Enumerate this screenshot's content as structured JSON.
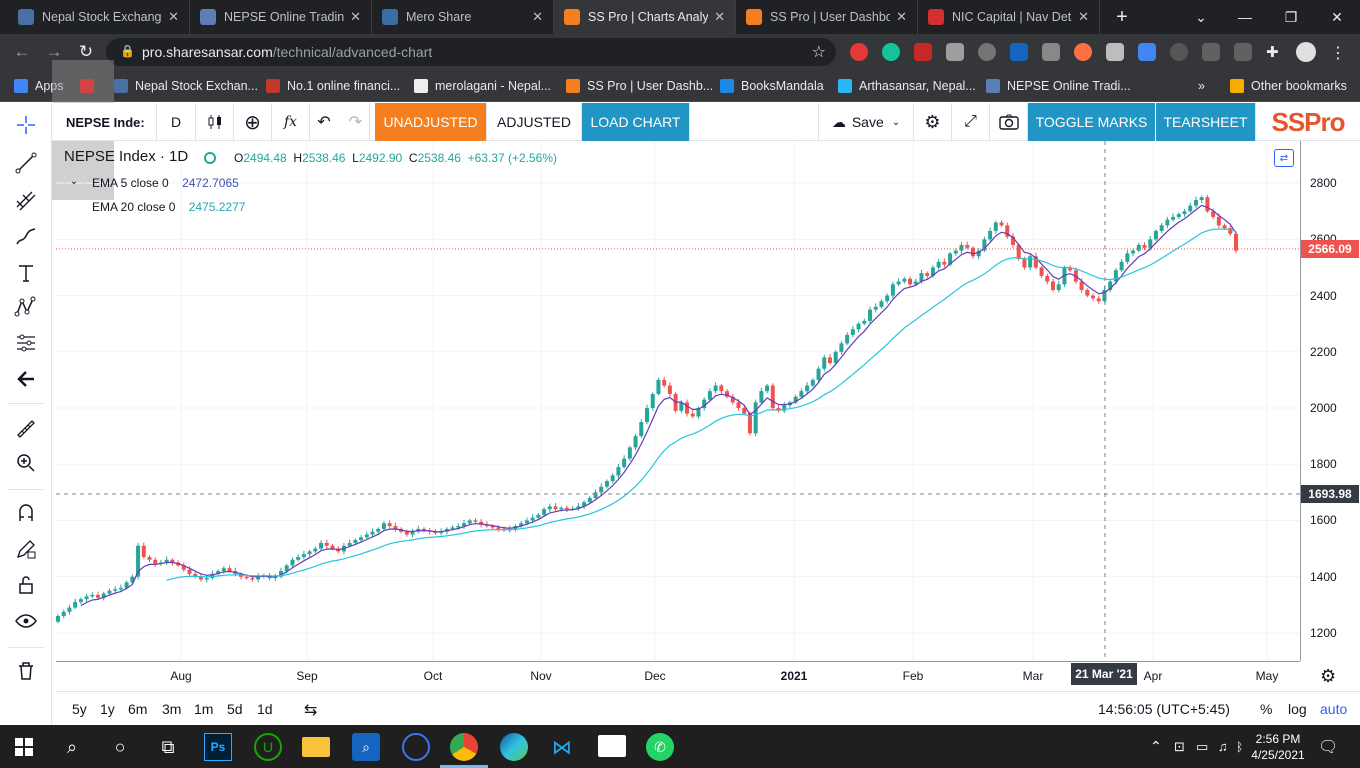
{
  "browser": {
    "tabs": [
      {
        "label": "Nepal Stock Exchange",
        "favicon": "nepse-favicon",
        "color": "#4a6fa5",
        "active": false
      },
      {
        "label": "NEPSE Online Trading",
        "favicon": "nepse-favicon",
        "color": "#5b7fb5",
        "active": false
      },
      {
        "label": "Mero Share",
        "favicon": "mero-share-favicon",
        "color": "#3a6ea5",
        "active": false
      },
      {
        "label": "SS Pro | Charts Analysis",
        "favicon": "sspro-favicon",
        "color": "#f57e1f",
        "active": true
      },
      {
        "label": "SS Pro | User Dashboard",
        "favicon": "sspro-favicon",
        "color": "#f57e1f",
        "active": false
      },
      {
        "label": "NIC Capital | Nav Details",
        "favicon": "nic-favicon",
        "color": "#d32f2f",
        "active": false
      }
    ],
    "url_host": "pro.sharesansar.com",
    "url_path": "/technical/advanced-chart",
    "bookmarks": [
      {
        "label": "Apps",
        "icon": "apps-icon",
        "color": "#4285f4"
      },
      {
        "label": "",
        "icon": "youtube-icon",
        "color": "#ff0000"
      },
      {
        "label": "Nepal Stock Exchan...",
        "icon": "nepse-favicon",
        "color": "#4a6fa5"
      },
      {
        "label": "No.1 online financi...",
        "icon": "bull-icon",
        "color": "#c0392b"
      },
      {
        "label": "merolagani - Nepal...",
        "icon": "merolagani-icon",
        "color": "#eeeeee"
      },
      {
        "label": "SS Pro | User Dashb...",
        "icon": "sspro-favicon",
        "color": "#f57e1f"
      },
      {
        "label": "BooksMandala",
        "icon": "booksmandala-icon",
        "color": "#1e88e5"
      },
      {
        "label": "Arthasansar, Nepal...",
        "icon": "arthasansar-icon",
        "color": "#29b6f6"
      },
      {
        "label": "NEPSE Online Tradi...",
        "icon": "nepse-favicon",
        "color": "#5b7fb5"
      }
    ],
    "bookmarks_more": "»",
    "other_bookmarks": "Other bookmarks"
  },
  "toolbar": {
    "symbol": "NEPSE Inde:",
    "interval": "D",
    "unadjusted": "UNADJUSTED",
    "adjusted": "ADJUSTED",
    "load_chart": "LOAD CHART",
    "save": "Save",
    "toggle_marks": "TOGGLE MARKS",
    "tearsheet": "TEARSHEET",
    "logo": "SSPro"
  },
  "legend": {
    "symbol": "NEPSE Index · 1D",
    "o_label": "O",
    "o": "2494.48",
    "h_label": "H",
    "h": "2538.46",
    "l_label": "L",
    "l": "2492.90",
    "c_label": "C",
    "c": "2538.46",
    "change": "+63.37 (+2.56%)",
    "ema5_label": "EMA 5 close 0",
    "ema5_value": "2472.7065",
    "ema20_label": "EMA 20 close 0",
    "ema20_value": "2475.2277"
  },
  "axes": {
    "last_price_label": "2566.09",
    "crosshair_price_label": "1693.98",
    "crosshair_date_label": "21 Mar '21"
  },
  "bottom": {
    "ranges": [
      "5y",
      "1y",
      "6m",
      "3m",
      "1m",
      "5d",
      "1d"
    ],
    "clock": "14:56:05 (UTC+5:45)",
    "percent": "%",
    "log": "log",
    "auto": "auto"
  },
  "taskbar": {
    "time": "2:56 PM",
    "date": "4/25/2021"
  },
  "chart_data": {
    "type": "candlestick",
    "symbol": "NEPSE Index",
    "interval": "1D",
    "y_ticks": [
      1200,
      1400,
      1600,
      1800,
      2000,
      2200,
      2400,
      2600,
      2800
    ],
    "x_ticks": [
      "Aug",
      "Sep",
      "Oct",
      "Nov",
      "Dec",
      "2021",
      "Feb",
      "Mar",
      "Apr",
      "May"
    ],
    "ylim": [
      1100,
      2950
    ],
    "last_price": 2566.09,
    "crosshair_price": 1693.98,
    "crosshair_date": "21 Mar '21",
    "colors": {
      "up": "#26a69a",
      "down": "#ef5350",
      "ema5": "#673ab7",
      "ema20": "#26c6da"
    },
    "closes": [
      1260,
      1275,
      1290,
      1310,
      1320,
      1330,
      1335,
      1325,
      1340,
      1350,
      1355,
      1360,
      1380,
      1400,
      1510,
      1470,
      1460,
      1445,
      1450,
      1460,
      1450,
      1440,
      1425,
      1410,
      1400,
      1390,
      1395,
      1410,
      1420,
      1430,
      1420,
      1410,
      1400,
      1395,
      1390,
      1400,
      1405,
      1395,
      1400,
      1420,
      1440,
      1460,
      1470,
      1480,
      1490,
      1500,
      1520,
      1510,
      1500,
      1490,
      1510,
      1520,
      1530,
      1540,
      1550,
      1560,
      1570,
      1590,
      1580,
      1570,
      1560,
      1550,
      1560,
      1570,
      1565,
      1560,
      1555,
      1560,
      1570,
      1575,
      1580,
      1590,
      1600,
      1595,
      1585,
      1580,
      1575,
      1570,
      1565,
      1570,
      1580,
      1590,
      1600,
      1610,
      1620,
      1640,
      1650,
      1640,
      1645,
      1640,
      1642,
      1650,
      1665,
      1680,
      1700,
      1720,
      1740,
      1760,
      1790,
      1820,
      1860,
      1900,
      1950,
      2000,
      2050,
      2100,
      2080,
      2050,
      1990,
      2020,
      1980,
      1970,
      2000,
      2030,
      2060,
      2080,
      2060,
      2040,
      2020,
      2000,
      1980,
      1910,
      2020,
      2060,
      2080,
      2000,
      1990,
      2010,
      2020,
      2040,
      2060,
      2080,
      2100,
      2140,
      2180,
      2160,
      2200,
      2230,
      2260,
      2280,
      2300,
      2310,
      2350,
      2360,
      2380,
      2400,
      2440,
      2450,
      2460,
      2440,
      2450,
      2480,
      2470,
      2500,
      2520,
      2510,
      2550,
      2560,
      2580,
      2570,
      2540,
      2560,
      2600,
      2630,
      2660,
      2650,
      2610,
      2580,
      2530,
      2500,
      2540,
      2500,
      2470,
      2450,
      2420,
      2440,
      2500,
      2490,
      2450,
      2420,
      2400,
      2390,
      2380,
      2420,
      2450,
      2490,
      2520,
      2550,
      2560,
      2580,
      2570,
      2600,
      2630,
      2650,
      2670,
      2680,
      2690,
      2700,
      2720,
      2740,
      2750,
      2700,
      2680,
      2650,
      2640,
      2620,
      2560
    ],
    "ema5_last": 2472.7065,
    "ema20_last": 2475.2277
  }
}
